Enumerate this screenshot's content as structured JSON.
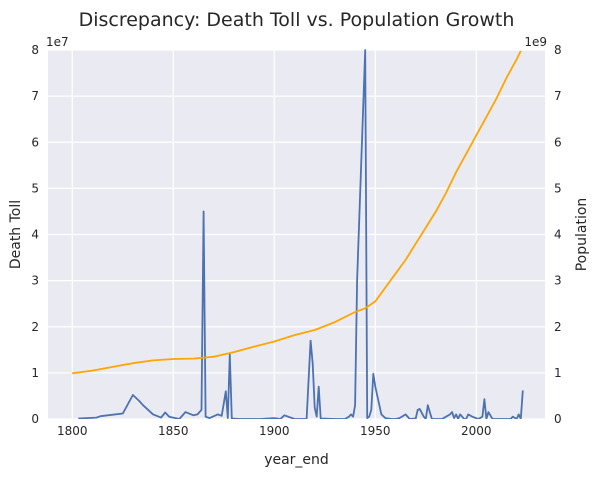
{
  "chart_data": {
    "type": "line",
    "title": "Discrepancy: Death Toll vs. Population Growth",
    "xlabel": "year_end",
    "ylabel_left": "Death Toll",
    "ylabel_right": "Population",
    "xlim": [
      1788,
      2034
    ],
    "x_ticks": [
      1800,
      1850,
      1900,
      1950,
      2000
    ],
    "ylim_left": [
      0,
      80000000
    ],
    "ylim_right": [
      0,
      8000000000
    ],
    "y_ticks_left": [
      "0",
      "1",
      "2",
      "3",
      "4",
      "5",
      "6",
      "7",
      "8"
    ],
    "y_ticks_right": [
      "0",
      "1",
      "2",
      "3",
      "4",
      "5",
      "6",
      "7",
      "8"
    ],
    "y_offset_left": "1e7",
    "y_offset_right": "1e9",
    "grid": true,
    "colors": {
      "death_toll": "#4c72b0",
      "population": "#ffa500",
      "background": "#eaeaf2",
      "grid": "#ffffff"
    },
    "series": [
      {
        "axis": "left",
        "x": [
          1803,
          1812,
          1814,
          1825,
          1830,
          1833,
          1835,
          1840,
          1844,
          1846,
          1848,
          1853,
          1856,
          1860,
          1862,
          1864,
          1865,
          1866,
          1868,
          1872,
          1874,
          1876,
          1877,
          1878,
          1879,
          1883,
          1893,
          1900,
          1903,
          1905,
          1910,
          1914,
          1916,
          1918,
          1919,
          1920,
          1921,
          1922,
          1923,
          1930,
          1935,
          1937,
          1938,
          1939,
          1940,
          1941,
          1945,
          1946,
          1947,
          1948,
          1949,
          1950,
          1953,
          1955,
          1958,
          1960,
          1962,
          1965,
          1967,
          1970,
          1971,
          1972,
          1974,
          1975,
          1976,
          1978,
          1980,
          1983,
          1985,
          1987,
          1988,
          1989,
          1990,
          1991,
          1992,
          1994,
          1995,
          1996,
          1998,
          2001,
          2003,
          2004,
          2005,
          2006,
          2008,
          2010,
          2012,
          2015,
          2017,
          2018,
          2020,
          2021,
          2022,
          2023
        ],
        "values": [
          100000,
          300000,
          600000,
          1200000,
          5200000,
          4000000,
          3000000,
          1000000,
          300000,
          1400000,
          500000,
          0,
          1500000,
          800000,
          1000000,
          2000000,
          45000000,
          500000,
          200000,
          1000000,
          700000,
          6000000,
          200000,
          14000000,
          100000,
          0,
          0,
          200000,
          0,
          800000,
          0,
          0,
          0,
          17000000,
          12000000,
          2500000,
          500000,
          7000000,
          100000,
          0,
          0,
          500000,
          1000000,
          500000,
          3000000,
          30000000,
          80000000,
          200000,
          500000,
          2000000,
          9800000,
          7000000,
          1000000,
          200000,
          0,
          0,
          200000,
          1000000,
          0,
          100000,
          2000000,
          2200000,
          500000,
          0,
          3000000,
          0,
          0,
          0,
          500000,
          1000000,
          1500000,
          200000,
          1000000,
          0,
          1000000,
          0,
          0,
          1000000,
          500000,
          0,
          500000,
          4300000,
          0,
          1500000,
          0,
          0,
          0,
          0,
          0,
          500000,
          0,
          1000000,
          0,
          6200000
        ]
      },
      {
        "axis": "right",
        "x": [
          1800,
          1810,
          1820,
          1830,
          1840,
          1850,
          1860,
          1870,
          1880,
          1890,
          1900,
          1910,
          1920,
          1930,
          1940,
          1945,
          1950,
          1955,
          1960,
          1965,
          1970,
          1975,
          1980,
          1985,
          1990,
          1995,
          2000,
          2005,
          2010,
          2015,
          2020,
          2022
        ],
        "values": [
          990000000,
          1050000000,
          1130000000,
          1210000000,
          1270000000,
          1300000000,
          1310000000,
          1350000000,
          1450000000,
          1570000000,
          1680000000,
          1820000000,
          1930000000,
          2100000000,
          2320000000,
          2400000000,
          2550000000,
          2850000000,
          3150000000,
          3450000000,
          3800000000,
          4150000000,
          4500000000,
          4900000000,
          5350000000,
          5750000000,
          6150000000,
          6550000000,
          6950000000,
          7400000000,
          7800000000,
          7980000000
        ]
      }
    ]
  }
}
